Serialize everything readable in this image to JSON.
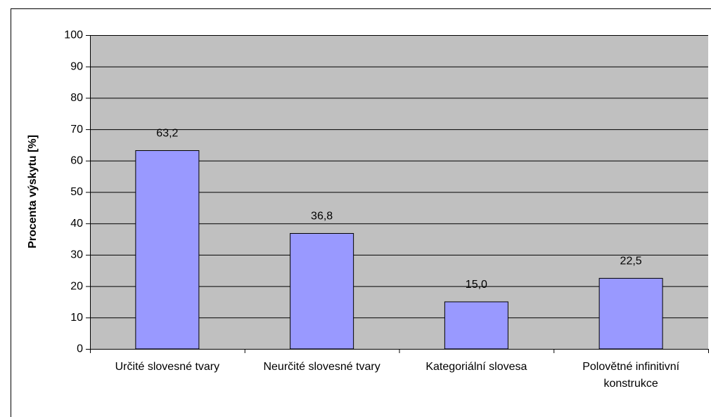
{
  "chart_data": {
    "type": "bar",
    "y_axis_label": "Procenta výskytu [%]",
    "categories": [
      "Určité slovesné tvary",
      "Neurčité slovesné tvary",
      "Kategoriální slovesa",
      "Polovětné infinitivní konstrukce"
    ],
    "values": [
      63.2,
      36.8,
      15.0,
      22.5
    ],
    "value_labels": [
      "63,2",
      "36,8",
      "15,0",
      "22,5"
    ],
    "color": "#9999ff",
    "ylim": [
      0,
      100
    ],
    "yticks": [
      0,
      10,
      20,
      30,
      40,
      50,
      60,
      70,
      80,
      90,
      100
    ],
    "grid": true
  }
}
